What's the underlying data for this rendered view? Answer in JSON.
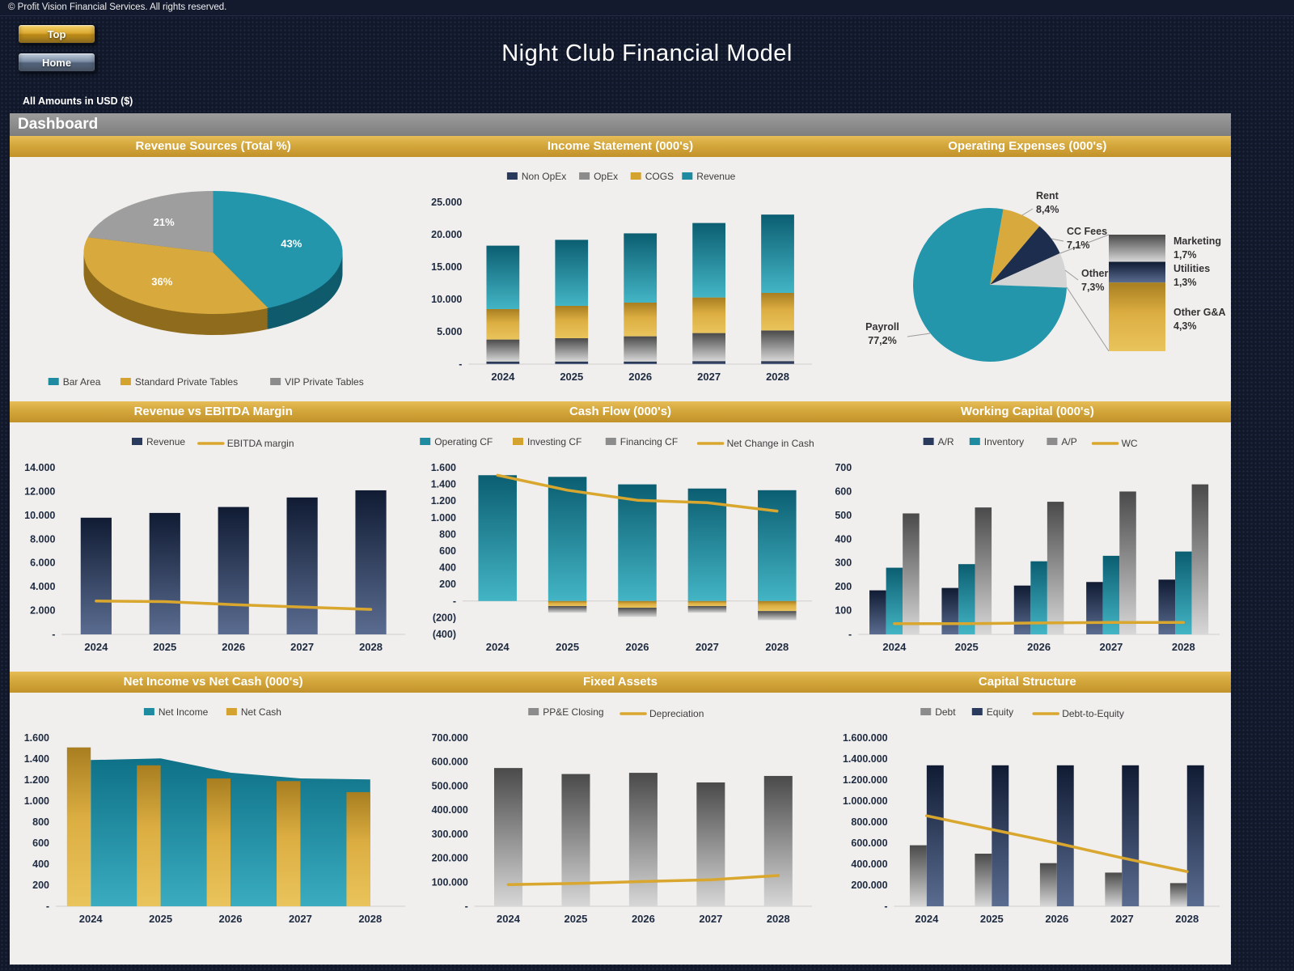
{
  "page": {
    "copyright": "© Profit Vision Financial Services. All rights reserved.",
    "title": "Night Club Financial Model",
    "amounts_note": "All Amounts in  USD ($)",
    "dashboard_label": "Dashboard",
    "buttons": {
      "top": "Top",
      "home": "Home"
    }
  },
  "sections": {
    "row1": [
      "Revenue Sources (Total %)",
      "Income Statement (000's)",
      "Operating Expenses (000's)"
    ],
    "row2": [
      "Revenue vs EBITDA Margin",
      "Cash Flow (000's)",
      "Working Capital (000's)"
    ],
    "row3": [
      "Net Income vs Net Cash (000's)",
      "Fixed Assets",
      "Capital Structure"
    ]
  },
  "colors": {
    "accent_gold": "#d9a62e",
    "teal": "#1f8ba0",
    "navy": "#27375a",
    "gray": "#8c8c8c",
    "panel_bg": "#f0efed",
    "outer_bg": "#11182a"
  },
  "chart_data": {
    "revenue_sources": {
      "type": "pie3d",
      "title": "Revenue Sources (Total %)",
      "start_angle": 0,
      "slices": [
        {
          "label": "Bar Area",
          "value": 43,
          "pct": "43%",
          "color": "teal"
        },
        {
          "label": "Standard Private Tables",
          "value": 36,
          "pct": "36%",
          "color": "gold"
        },
        {
          "label": "VIP Private Tables",
          "value": 21,
          "pct": "21%",
          "color": "gray"
        }
      ]
    },
    "income_statement": {
      "type": "combo",
      "stacked": true,
      "barw": 0.48,
      "title": "Income Statement (000's)",
      "categories": [
        "2024",
        "2025",
        "2026",
        "2027",
        "2028"
      ],
      "ylim": [
        0,
        25000
      ],
      "ystep": 5000,
      "series": [
        {
          "name": "Non OpEx",
          "kind": "bar",
          "fill": "navy",
          "values": [
            400,
            400,
            400,
            450,
            450
          ]
        },
        {
          "name": "OpEx",
          "kind": "bar",
          "fill": "gray",
          "values": [
            3400,
            3600,
            3900,
            4350,
            4750
          ]
        },
        {
          "name": "COGS",
          "kind": "bar",
          "fill": "gold",
          "values": [
            4700,
            5000,
            5200,
            5500,
            5800
          ]
        },
        {
          "name": "Revenue",
          "kind": "bar",
          "fill": "teal",
          "values": [
            9800,
            10200,
            10700,
            11500,
            12100
          ]
        }
      ]
    },
    "operating_expenses": {
      "type": "pie-bar",
      "title": "Operating Expenses (000's)",
      "start_angle": 10,
      "slices": [
        {
          "label": "Rent",
          "pct": "8,4%",
          "value": 8.4,
          "color": "gold"
        },
        {
          "label": "CC Fees",
          "pct": "7,1%",
          "value": 7.1,
          "color": "navy"
        },
        {
          "label": "Other",
          "pct": "7,3%",
          "value": 7.3,
          "color": "lightgray"
        },
        {
          "label": "Payroll",
          "pct": "77,2%",
          "value": 77.2,
          "color": "teal"
        }
      ],
      "bar_slices": [
        {
          "label": "Marketing",
          "pct": "1,7%",
          "value": 1.7,
          "color": "gray"
        },
        {
          "label": "Utilities",
          "pct": "1,3%",
          "value": 1.3,
          "color": "navy"
        },
        {
          "label": "Other G&A",
          "pct": "4,3%",
          "value": 4.3,
          "color": "gold"
        }
      ]
    },
    "revenue_ebitda": {
      "type": "combo",
      "stacked": false,
      "barw": 0.45,
      "title": "Revenue vs EBITDA Margin",
      "categories": [
        "2024",
        "2025",
        "2026",
        "2027",
        "2028"
      ],
      "ylim": [
        0,
        14000
      ],
      "ystep": 2000,
      "series": [
        {
          "name": "Revenue",
          "kind": "bar",
          "fill": "navy",
          "values": [
            9800,
            10200,
            10700,
            11500,
            12100
          ]
        },
        {
          "name": "EBITDA margin",
          "kind": "line",
          "fill": "gold",
          "values": [
            2800,
            2750,
            2500,
            2300,
            2100
          ]
        }
      ]
    },
    "cash_flow": {
      "type": "combo",
      "stacked": true,
      "barw": 0.55,
      "title": "Cash Flow (000's)",
      "categories": [
        "2024",
        "2025",
        "2026",
        "2027",
        "2028"
      ],
      "ylim": [
        -400,
        1600
      ],
      "ystep": 200,
      "series": [
        {
          "name": "Operating CF",
          "kind": "bar",
          "fill": "teal",
          "values": [
            1510,
            1490,
            1400,
            1350,
            1330
          ]
        },
        {
          "name": "Investing CF",
          "kind": "bar",
          "fill": "gold",
          "values": [
            0,
            -60,
            -80,
            -60,
            -120
          ]
        },
        {
          "name": "Financing CF",
          "kind": "bar",
          "fill": "gray",
          "values": [
            0,
            -80,
            -110,
            -80,
            -110
          ]
        },
        {
          "name": "Net Change in Cash",
          "kind": "line",
          "fill": "gold",
          "values": [
            1510,
            1330,
            1210,
            1180,
            1080
          ]
        }
      ]
    },
    "working_capital": {
      "type": "combo",
      "stacked": false,
      "barw": 0.23,
      "title": "Working Capital (000's)",
      "categories": [
        "2024",
        "2025",
        "2026",
        "2027",
        "2028"
      ],
      "ylim": [
        0,
        700
      ],
      "ystep": 100,
      "series": [
        {
          "name": "A/R",
          "kind": "bar",
          "fill": "navy",
          "values": [
            185,
            195,
            205,
            220,
            230
          ]
        },
        {
          "name": "Inventory",
          "kind": "bar",
          "fill": "teal",
          "values": [
            280,
            295,
            307,
            330,
            348
          ]
        },
        {
          "name": "A/P",
          "kind": "bar",
          "fill": "gray",
          "values": [
            508,
            533,
            557,
            600,
            630
          ]
        },
        {
          "name": "WC",
          "kind": "line",
          "fill": "gold",
          "values": [
            45,
            45,
            48,
            50,
            50
          ]
        }
      ]
    },
    "net_income_net_cash": {
      "type": "combo",
      "stacked": false,
      "barw": 0.34,
      "title": "Net Income vs Net Cash (000's)",
      "categories": [
        "2024",
        "2025",
        "2026",
        "2027",
        "2028"
      ],
      "ylim": [
        0,
        1600
      ],
      "ystep": 200,
      "series": [
        {
          "name": "Net Income",
          "kind": "area",
          "fill": "tealArea",
          "values": [
            1390,
            1405,
            1270,
            1215,
            1205
          ]
        },
        {
          "name": "Net Cash",
          "kind": "bar",
          "fill": "gold",
          "values": [
            1510,
            1340,
            1215,
            1190,
            1085
          ]
        }
      ]
    },
    "fixed_assets": {
      "type": "combo",
      "stacked": false,
      "barw": 0.42,
      "title": "Fixed Assets",
      "categories": [
        "2024",
        "2025",
        "2026",
        "2027",
        "2028"
      ],
      "ylim": [
        0,
        700000
      ],
      "ystep": 100000,
      "series": [
        {
          "name": "PP&E Closing",
          "kind": "bar",
          "fill": "gray",
          "values": [
            575000,
            550000,
            555000,
            515000,
            542000
          ]
        },
        {
          "name": "Depreciation",
          "kind": "line",
          "fill": "gold",
          "values": [
            90000,
            95000,
            103000,
            110000,
            128000
          ]
        }
      ]
    },
    "capital_structure": {
      "type": "combo",
      "stacked": false,
      "barw": 0.26,
      "title": "Capital Structure",
      "categories": [
        "2024",
        "2025",
        "2026",
        "2027",
        "2028"
      ],
      "ylim": [
        0,
        1600000
      ],
      "ystep": 200000,
      "series": [
        {
          "name": "Debt",
          "kind": "bar",
          "fill": "gray",
          "values": [
            580000,
            500000,
            410000,
            320000,
            220000
          ]
        },
        {
          "name": "Equity",
          "kind": "bar",
          "fill": "navy",
          "values": [
            1340000,
            1340000,
            1340000,
            1340000,
            1340000
          ]
        },
        {
          "name": "Debt-to-Equity",
          "kind": "line",
          "fill": "gold",
          "values": [
            860000,
            730000,
            600000,
            460000,
            330000
          ]
        }
      ]
    }
  }
}
